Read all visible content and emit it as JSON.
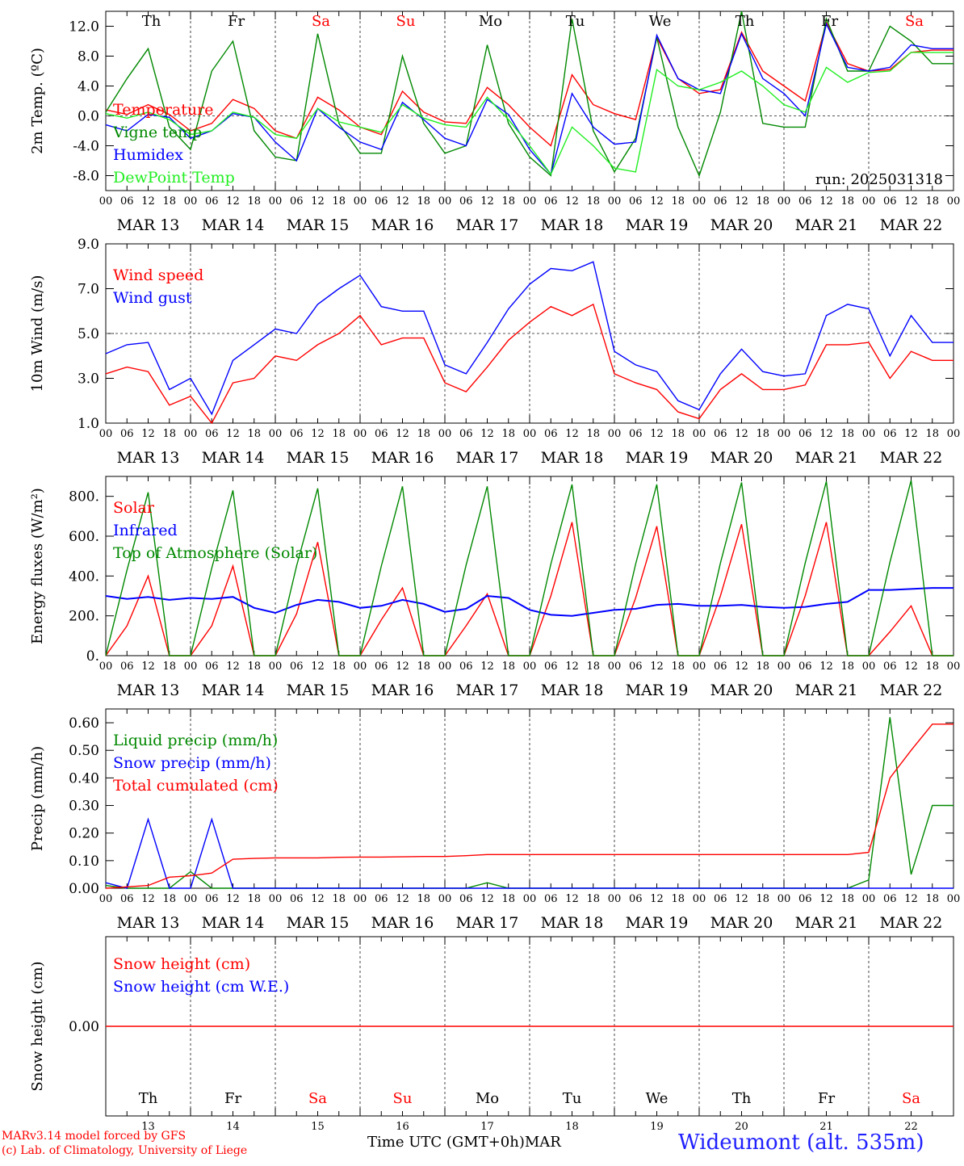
{
  "days": [
    "MAR 13",
    "MAR 14",
    "MAR 15",
    "MAR 16",
    "MAR 17",
    "MAR 18",
    "MAR 19",
    "MAR 20",
    "MAR 21",
    "MAR 22"
  ],
  "weekdays": [
    {
      "label": "Th",
      "color": "#000000"
    },
    {
      "label": "Fr",
      "color": "#000000"
    },
    {
      "label": "Sa",
      "color": "#ff0000"
    },
    {
      "label": "Su",
      "color": "#ff0000"
    },
    {
      "label": "Mo",
      "color": "#000000"
    },
    {
      "label": "Tu",
      "color": "#000000"
    },
    {
      "label": "We",
      "color": "#000000"
    },
    {
      "label": "Th",
      "color": "#000000"
    },
    {
      "label": "Fr",
      "color": "#000000"
    },
    {
      "label": "Sa",
      "color": "#ff0000"
    }
  ],
  "day_numbers": [
    "13",
    "14",
    "15",
    "16",
    "17",
    "18",
    "19",
    "20",
    "21",
    "22"
  ],
  "hour_ticks": [
    "00",
    "06",
    "12",
    "18"
  ],
  "x_end_label": "00",
  "footer": {
    "model": "MARv3.14 model forced by GFS",
    "copyright": "(c) Lab. of Climatology, University of Liege",
    "xlabel": "Time UTC (GMT+0h)",
    "month": "MAR",
    "station": "Wideumont (alt. 535m)"
  },
  "colors": {
    "red": "#ff0000",
    "green": "#008800",
    "blue": "#0000ff",
    "lightgreen": "#22ee22"
  },
  "chart_data": [
    {
      "type": "line",
      "ylabel": "2m Temp. (ºC)",
      "ylim": [
        -10,
        14
      ],
      "yticks": [
        "12.0",
        "8.0",
        "4.0",
        "0.0",
        "-4.0",
        "-8.0"
      ],
      "ytick_values": [
        12,
        8,
        4,
        0,
        -4,
        -8
      ],
      "dashed_y": 0,
      "annotation": "run: 2025031318",
      "x_hours": [
        0,
        6,
        12,
        18,
        24,
        30,
        36,
        42,
        48,
        54,
        60,
        66,
        72,
        78,
        84,
        90,
        96,
        102,
        108,
        114,
        120,
        126,
        132,
        138,
        144,
        150,
        156,
        162,
        168,
        174,
        180,
        186,
        192,
        198,
        204,
        210,
        216,
        222,
        228,
        234
      ],
      "series": [
        {
          "name": "Temperature",
          "color": "#ff0000",
          "values": [
            0.8,
            0.2,
            1.5,
            0.2,
            -2.0,
            -1.0,
            2.2,
            1.0,
            -2.0,
            -3.0,
            2.5,
            0.8,
            -1.5,
            -2.5,
            3.3,
            0.5,
            -0.8,
            -1.0,
            3.8,
            1.5,
            -1.5,
            -4.0,
            5.5,
            1.5,
            0.3,
            -0.5,
            10.5,
            5.0,
            3.0,
            3.5,
            11.2,
            6.0,
            4.0,
            2.0,
            12.5,
            7.0,
            6.0,
            6.2,
            8.5,
            8.8
          ]
        },
        {
          "name": "Vigne temp",
          "color": "#008800",
          "values": [
            0.5,
            5.0,
            9.0,
            -1.5,
            -4.5,
            6.0,
            10.0,
            -2.0,
            -5.5,
            -6.0,
            11.0,
            -1.0,
            -5.0,
            -5.0,
            8.0,
            -1.0,
            -5.0,
            -4.0,
            9.5,
            -1.0,
            -5.5,
            -8.0,
            13.0,
            -2.0,
            -7.5,
            -3.0,
            10.5,
            -1.5,
            -8.0,
            0.5,
            14.0,
            -1.0,
            -1.5,
            -1.5,
            13.0,
            6.0,
            6.0,
            12.0,
            10.0,
            7.0
          ]
        },
        {
          "name": "Humidex",
          "color": "#0000ff",
          "values": [
            -1.2,
            -2.0,
            0.2,
            -0.2,
            -3.0,
            -2.0,
            0.3,
            -0.2,
            -3.5,
            -6.0,
            1.0,
            -1.5,
            -3.5,
            -4.5,
            1.8,
            -0.5,
            -3.0,
            -4.0,
            2.2,
            0.2,
            -4.5,
            -7.8,
            3.0,
            -1.5,
            -3.8,
            -3.5,
            10.8,
            5.0,
            3.5,
            3.0,
            11.0,
            5.0,
            3.0,
            0.0,
            12.3,
            6.5,
            6.0,
            6.5,
            9.5,
            9.0
          ]
        },
        {
          "name": "DewPoint Temp",
          "color": "#22ee22",
          "values": [
            0.3,
            -0.3,
            0.5,
            -0.5,
            -2.5,
            -2.0,
            0.5,
            -0.2,
            -2.5,
            -3.0,
            1.0,
            -0.8,
            -1.5,
            -2.2,
            1.5,
            -0.3,
            -1.2,
            -1.5,
            2.5,
            -0.5,
            -4.0,
            -7.8,
            -1.5,
            -4.0,
            -7.0,
            -7.5,
            6.2,
            4.0,
            3.5,
            4.5,
            6.0,
            4.0,
            1.5,
            0.5,
            6.5,
            4.5,
            5.8,
            6.0,
            8.5,
            8.5
          ]
        }
      ]
    },
    {
      "type": "line",
      "ylabel": "10m Wind (m/s)",
      "ylim": [
        1,
        9
      ],
      "yticks": [
        "9.0",
        "7.0",
        "5.0",
        "3.0",
        "1.0"
      ],
      "ytick_values": [
        9,
        7,
        5,
        3,
        1
      ],
      "dashed_y": 5,
      "x_hours": [
        0,
        6,
        12,
        18,
        24,
        30,
        36,
        42,
        48,
        54,
        60,
        66,
        72,
        78,
        84,
        90,
        96,
        102,
        108,
        114,
        120,
        126,
        132,
        138,
        144,
        150,
        156,
        162,
        168,
        174,
        180,
        186,
        192,
        198,
        204,
        210,
        216,
        222,
        228,
        234
      ],
      "series": [
        {
          "name": "Wind speed",
          "color": "#ff0000",
          "values": [
            3.2,
            3.5,
            3.3,
            1.8,
            2.2,
            1.0,
            2.8,
            3.0,
            4.0,
            3.8,
            4.5,
            5.0,
            5.8,
            4.5,
            4.8,
            4.8,
            2.8,
            2.4,
            3.5,
            4.7,
            5.5,
            6.2,
            5.8,
            6.3,
            3.2,
            2.8,
            2.5,
            1.5,
            1.2,
            2.5,
            3.2,
            2.5,
            2.5,
            2.7,
            4.5,
            4.5,
            4.6,
            3.0,
            4.2,
            3.8
          ]
        },
        {
          "name": "Wind gust",
          "color": "#0000ff",
          "values": [
            4.1,
            4.5,
            4.6,
            2.5,
            3.0,
            1.4,
            3.8,
            4.5,
            5.2,
            5.0,
            6.3,
            7.0,
            7.6,
            6.2,
            6.0,
            6.0,
            3.6,
            3.2,
            4.6,
            6.1,
            7.2,
            7.9,
            7.8,
            8.2,
            4.2,
            3.6,
            3.3,
            2.0,
            1.6,
            3.2,
            4.3,
            3.3,
            3.1,
            3.2,
            5.8,
            6.3,
            6.1,
            4.0,
            5.8,
            4.6
          ]
        }
      ]
    },
    {
      "type": "line",
      "ylabel": "Energy fluxes (W/m²)",
      "ylim": [
        0,
        900
      ],
      "yticks": [
        "800.",
        "600.",
        "400.",
        "200.",
        "0."
      ],
      "ytick_values": [
        800,
        600,
        400,
        200,
        0
      ],
      "x_hours": [
        0,
        6,
        12,
        18,
        24,
        30,
        36,
        42,
        48,
        54,
        60,
        66,
        72,
        78,
        84,
        90,
        96,
        102,
        108,
        114,
        120,
        126,
        132,
        138,
        144,
        150,
        156,
        162,
        168,
        174,
        180,
        186,
        192,
        198,
        204,
        210,
        216,
        222,
        228,
        234
      ],
      "series": [
        {
          "name": "Solar",
          "color": "#ff0000",
          "values": [
            0,
            150,
            400,
            0,
            0,
            150,
            450,
            0,
            0,
            210,
            570,
            0,
            0,
            180,
            340,
            0,
            0,
            150,
            310,
            0,
            0,
            300,
            670,
            0,
            0,
            290,
            650,
            0,
            0,
            300,
            660,
            0,
            0,
            300,
            670,
            0,
            0,
            120,
            250,
            0
          ]
        },
        {
          "name": "Infrared",
          "color": "#0000ff",
          "values": [
            300,
            285,
            295,
            280,
            290,
            285,
            295,
            240,
            215,
            255,
            280,
            270,
            240,
            250,
            280,
            260,
            220,
            235,
            300,
            290,
            230,
            205,
            200,
            215,
            230,
            235,
            255,
            260,
            250,
            250,
            255,
            245,
            240,
            245,
            260,
            270,
            330,
            330,
            335,
            340
          ]
        },
        {
          "name": "Top of Atmosphere (Solar)",
          "color": "#008800",
          "values": [
            0,
            430,
            820,
            0,
            0,
            440,
            830,
            0,
            0,
            450,
            840,
            0,
            0,
            450,
            850,
            0,
            0,
            455,
            850,
            0,
            0,
            460,
            860,
            0,
            0,
            460,
            860,
            0,
            0,
            465,
            870,
            0,
            0,
            465,
            875,
            0,
            0,
            470,
            880,
            0
          ]
        }
      ]
    },
    {
      "type": "line",
      "ylabel": "Precip (mm/h)",
      "ylim": [
        0,
        0.65
      ],
      "yticks": [
        "0.60",
        "0.50",
        "0.40",
        "0.30",
        "0.20",
        "0.10",
        "0.00"
      ],
      "ytick_values": [
        0.6,
        0.5,
        0.4,
        0.3,
        0.2,
        0.1,
        0.0
      ],
      "x_hours": [
        0,
        6,
        12,
        18,
        24,
        30,
        36,
        42,
        48,
        54,
        60,
        66,
        72,
        78,
        84,
        90,
        96,
        102,
        108,
        114,
        120,
        126,
        132,
        138,
        144,
        150,
        156,
        162,
        168,
        174,
        180,
        186,
        192,
        198,
        204,
        210,
        216,
        222,
        228,
        234
      ],
      "series": [
        {
          "name": "Liquid precip (mm/h)",
          "color": "#008800",
          "values": [
            0.01,
            0.0,
            0.0,
            0.0,
            0.06,
            0.0,
            0.0,
            0.0,
            0.0,
            0.0,
            0.0,
            0.0,
            0.0,
            0.0,
            0.0,
            0.0,
            0.0,
            0.0,
            0.02,
            0.0,
            0.0,
            0.0,
            0.0,
            0.0,
            0.0,
            0.0,
            0.0,
            0.0,
            0.0,
            0.0,
            0.0,
            0.0,
            0.0,
            0.0,
            0.0,
            0.0,
            0.03,
            0.62,
            0.05,
            0.3
          ]
        },
        {
          "name": "Snow precip (mm/h)",
          "color": "#0000ff",
          "values": [
            0.02,
            0.0,
            0.25,
            0.0,
            0.0,
            0.25,
            0.0,
            0.0,
            0.0,
            0.0,
            0.0,
            0.0,
            0.0,
            0.0,
            0.0,
            0.0,
            0.0,
            0.0,
            0.0,
            0.0,
            0.0,
            0.0,
            0.0,
            0.0,
            0.0,
            0.0,
            0.0,
            0.0,
            0.0,
            0.0,
            0.0,
            0.0,
            0.0,
            0.0,
            0.0,
            0.0,
            0.0,
            0.0,
            0.0,
            0.0
          ]
        },
        {
          "name": "Total cumulated (cm)",
          "color": "#ff0000",
          "values": [
            0.0,
            0.005,
            0.01,
            0.04,
            0.045,
            0.055,
            0.105,
            0.108,
            0.11,
            0.11,
            0.11,
            0.112,
            0.113,
            0.113,
            0.114,
            0.115,
            0.115,
            0.118,
            0.122,
            0.122,
            0.122,
            0.122,
            0.122,
            0.122,
            0.122,
            0.122,
            0.122,
            0.122,
            0.122,
            0.122,
            0.122,
            0.122,
            0.122,
            0.122,
            0.122,
            0.122,
            0.13,
            0.4,
            0.5,
            0.595
          ]
        }
      ]
    },
    {
      "type": "line",
      "ylabel": "Snow height (cm)",
      "ylim": [
        -1,
        1
      ],
      "yticks": [
        "0.00"
      ],
      "ytick_values": [
        0
      ],
      "series": [
        {
          "name": "Snow height (cm)",
          "color": "#ff0000",
          "values": [
            0,
            0
          ]
        },
        {
          "name": "Snow height (cm W.E.)",
          "color": "#0000ff",
          "values": []
        }
      ]
    }
  ]
}
